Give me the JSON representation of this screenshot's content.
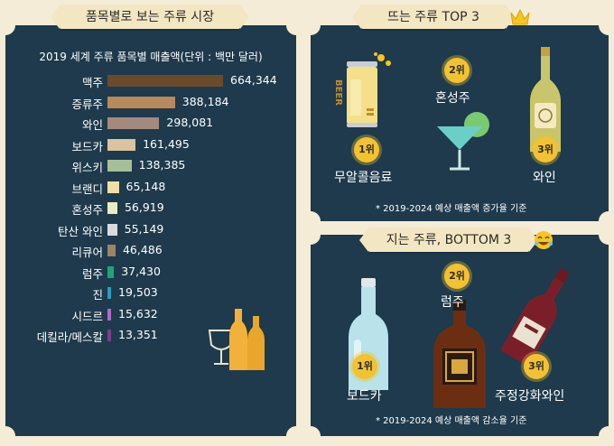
{
  "left_panel": {
    "ribbon_title": "품목별로 보는 주류 시장",
    "chart_title": "2019 세계 주류 품목별 매출액(단위 : 백만 달러)"
  },
  "chart_data": {
    "type": "bar",
    "orientation": "horizontal",
    "title": "2019 세계 주류 품목별 매출액(단위 : 백만 달러)",
    "categories": [
      "맥주",
      "증류주",
      "와인",
      "보드카",
      "위스키",
      "브랜디",
      "혼성주",
      "탄산 와인",
      "리큐어",
      "럼주",
      "진",
      "시드르",
      "데킬라/메스칼"
    ],
    "values": [
      664344,
      388184,
      298081,
      161495,
      138385,
      65148,
      56919,
      55149,
      46486,
      37430,
      19503,
      15632,
      13351
    ],
    "value_labels": [
      "664,344",
      "388,184",
      "298,081",
      "161,495",
      "138,385",
      "65,148",
      "56,919",
      "55,149",
      "46,486",
      "37,430",
      "19,503",
      "15,632",
      "13,351"
    ],
    "bar_colors": [
      "#6b4a2b",
      "#b88a5a",
      "#a48a7c",
      "#d9c3a0",
      "#a7bf98",
      "#f1dfa6",
      "#e8eec0",
      "#d9dcdf",
      "#9b8467",
      "#1aa67a",
      "#2a9dbf",
      "#b06ac7",
      "#7b3f8c"
    ]
  },
  "top_panel": {
    "ribbon_title": "뜨는 주류 TOP 3",
    "rank1_badge": "1위",
    "rank1_label": "무알콜음료",
    "rank2_badge": "2위",
    "rank2_label": "혼성주",
    "rank3_badge": "3위",
    "rank3_label": "와인",
    "can_text": "BEER",
    "footnote": "* 2019-2024 예상 매출액 증가율 기준"
  },
  "bottom_panel": {
    "ribbon_title": "지는 주류, BOTTOM 3",
    "rank1_badge": "1위",
    "rank1_label": "보드카",
    "rank2_badge": "2위",
    "rank2_label": "럼주",
    "rank3_badge": "3위",
    "rank3_label": "주정강화와인",
    "footnote": "* 2019-2024 예상 매출액 감소율 기준"
  }
}
